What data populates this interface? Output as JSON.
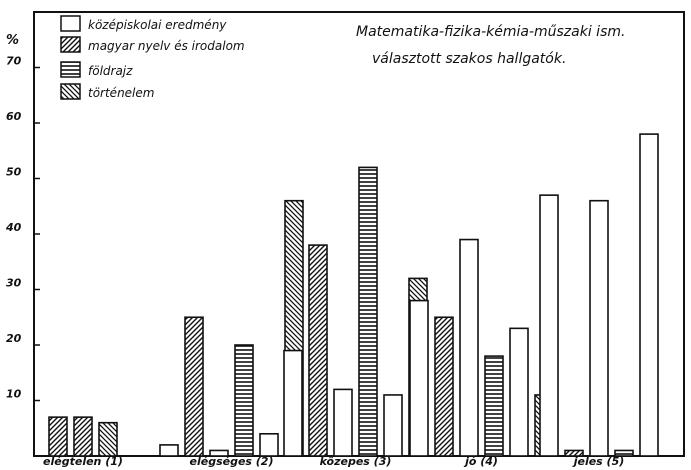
{
  "chart_data": {
    "type": "bar",
    "title": "Matematika-fizika-kémia-műszaki ism.",
    "subtitle": "választott szakos hallgatók.",
    "ylabel": "%",
    "ylim": [
      0,
      80
    ],
    "yticks": [
      10,
      20,
      30,
      40,
      50,
      60,
      70
    ],
    "grid": false,
    "legend": "top-left",
    "categories": [
      "elégtelen (1)",
      "elégséges (2)",
      "közepes (3)",
      "jó (4)",
      "jeles (5)"
    ],
    "series": [
      {
        "name": "középiskolai eredmény",
        "pattern": "plain"
      },
      {
        "name": "magyar nyelv és irodalom",
        "pattern": "diag-up"
      },
      {
        "name": "földrajz",
        "pattern": "horizontal"
      },
      {
        "name": "történelem",
        "pattern": "diag-down"
      }
    ],
    "groups": [
      {
        "category": "elégtelen (1)",
        "bars": [
          {
            "s": 1,
            "v": 7
          },
          {
            "s": 1,
            "v": 7
          },
          {
            "s": 3,
            "v": 6
          }
        ]
      },
      {
        "category": "elégséges (2)",
        "bars": [
          {
            "s": 0,
            "v": 2
          },
          {
            "s": 1,
            "v": 25
          },
          {
            "s": 0,
            "v": 1
          },
          {
            "s": 2,
            "v": 20
          },
          {
            "s": 0,
            "v": 4
          },
          {
            "s": 3,
            "v": 46
          }
        ]
      },
      {
        "category": "közepes (3)",
        "bars": [
          {
            "s": 0,
            "v": 19
          },
          {
            "s": 1,
            "v": 38
          },
          {
            "s": 0,
            "v": 12
          },
          {
            "s": 2,
            "v": 52
          },
          {
            "s": 0,
            "v": 11
          },
          {
            "s": 3,
            "v": 32
          }
        ]
      },
      {
        "category": "jó (4)",
        "bars": [
          {
            "s": 0,
            "v": 28
          },
          {
            "s": 1,
            "v": 25
          },
          {
            "s": 0,
            "v": 39
          },
          {
            "s": 2,
            "v": 18
          },
          {
            "s": 0,
            "v": 23
          },
          {
            "s": 3,
            "v": 11
          }
        ]
      },
      {
        "category": "jeles (5)",
        "bars": [
          {
            "s": 0,
            "v": 47
          },
          {
            "s": 1,
            "v": 1
          },
          {
            "s": 0,
            "v": 46
          },
          {
            "s": 2,
            "v": 1
          },
          {
            "s": 0,
            "v": 58
          }
        ]
      }
    ]
  }
}
